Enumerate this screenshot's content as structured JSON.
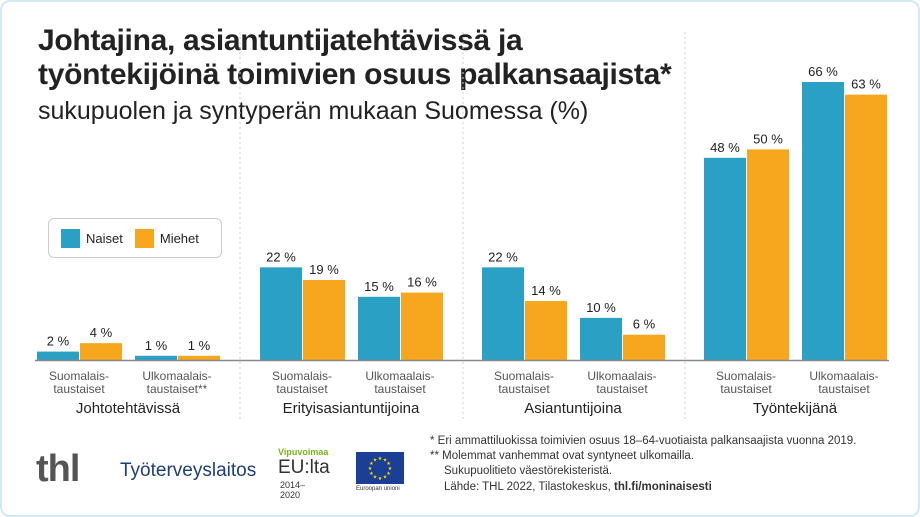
{
  "title": {
    "bold": "Johtajina, asiantuntijatehtävissä ja työntekijöinä toimivien osuus palkansaajista",
    "star": "*",
    "rest": " sukupuolen ja syntyperän mukaan Suomessa (%)"
  },
  "colors": {
    "naiset": "#2aa0c4",
    "miehet": "#f7a71e",
    "frame": "#d3eaf2"
  },
  "chart_data": {
    "type": "bar",
    "legend": {
      "position": "top-left",
      "entries": [
        "Naiset",
        "Miehet"
      ]
    },
    "groups": [
      {
        "name": "Johtotehtävissä",
        "categories": [
          "Suomalais-\ntaustaiset",
          "Ulkomaalais-\ntaustaiset**"
        ],
        "naiset": [
          2,
          1
        ],
        "miehet": [
          4,
          1
        ]
      },
      {
        "name": "Erityisasiantuntijoina",
        "categories": [
          "Suomalais-\ntaustaiset",
          "Ulkomaalais-\ntaustaiset"
        ],
        "naiset": [
          22,
          15
        ],
        "miehet": [
          19,
          16
        ]
      },
      {
        "name": "Asiantuntijoina",
        "categories": [
          "Suomalais-\ntaustaiset",
          "Ulkomaalais-\ntaustaiset"
        ],
        "naiset": [
          22,
          10
        ],
        "miehet": [
          14,
          6
        ]
      },
      {
        "name": "Työntekijänä",
        "categories": [
          "Suomalais-\ntaustaiset",
          "Ulkomaalais-\ntaustaiset"
        ],
        "naiset": [
          48,
          66
        ],
        "miehet": [
          50,
          63
        ]
      }
    ],
    "unit": "%",
    "ylim": [
      0,
      66
    ],
    "grid": false
  },
  "footer": {
    "logo_thl": "thl",
    "logo_tt": "Työterveyslaitos",
    "logo_vip": "Vipuvoimaa",
    "logo_eu": "EU:lta",
    "logo_years": "2014–2020",
    "logo_flag": "Euroopan unioni",
    "note1": "* Eri ammattiluokissa toimivien osuus 18–64-vuotiaista palkansaajista vuonna 2019.",
    "note2": "** Molemmat vanhemmat ovat syntyneet ulkomailla.",
    "note3": "Sukupuolitieto väestörekisteristä.",
    "source": "Lähde: THL 2022, Tilastokeskus, ",
    "source_link": "thl.fi/moninaisesti"
  }
}
